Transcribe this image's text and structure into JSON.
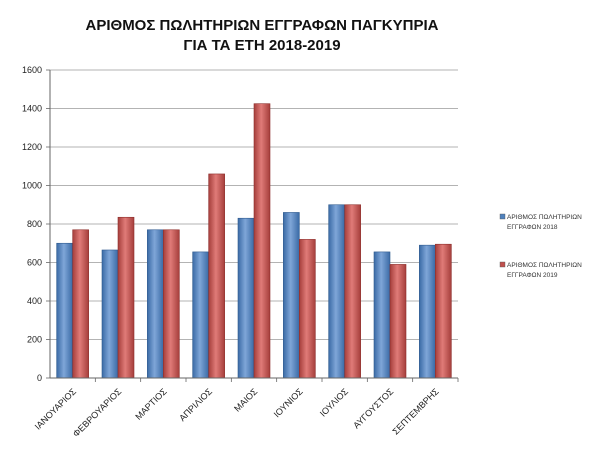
{
  "chart_data": {
    "type": "bar",
    "title": [
      "ΑΡΙΘΜΟΣ ΠΩΛΗΤΗΡΙΩΝ ΕΓΓΡΑΦΩΝ ΠΑΓΚΥΠΡΙΑ",
      "ΓΙΑ ΤΑ ΕΤΗ 2018-2019"
    ],
    "categories": [
      "ΙΑΝΟΥΑΡΙΟΣ",
      "ΦΕΒΡΟΥΑΡΙΟΣ",
      "ΜΑΡΤΙΟΣ",
      "ΑΠΡΙΛΙΟΣ",
      "ΜΑΙΟΣ",
      "ΙΟΥΝΙΟΣ",
      "ΙΟΥΛΙΟΣ",
      "ΑΥΓΟΥΣΤΟΣ",
      "ΣΕΠΤΕΜΒΡΗΣ"
    ],
    "series": [
      {
        "name": [
          "ΑΡΙΘΜΟΣ ΠΩΛΗΤΗΡΙΩΝ",
          "ΕΓΓΡΑΦΩΝ 2018"
        ],
        "color": "#4f81bd",
        "values": [
          700,
          665,
          770,
          655,
          830,
          860,
          900,
          655,
          690
        ]
      },
      {
        "name": [
          "ΑΡΙΘΜΟΣ ΠΩΛΗΤΗΡΙΩΝ",
          "ΕΓΓΡΑΦΩΝ 2019"
        ],
        "color": "#c0504d",
        "values": [
          770,
          835,
          770,
          1060,
          1425,
          720,
          900,
          590,
          695
        ]
      }
    ],
    "ylim": [
      0,
      1600
    ],
    "yticks": [
      0,
      200,
      400,
      600,
      800,
      1000,
      1200,
      1400,
      1600
    ],
    "grid": true,
    "legend_position": "right"
  }
}
